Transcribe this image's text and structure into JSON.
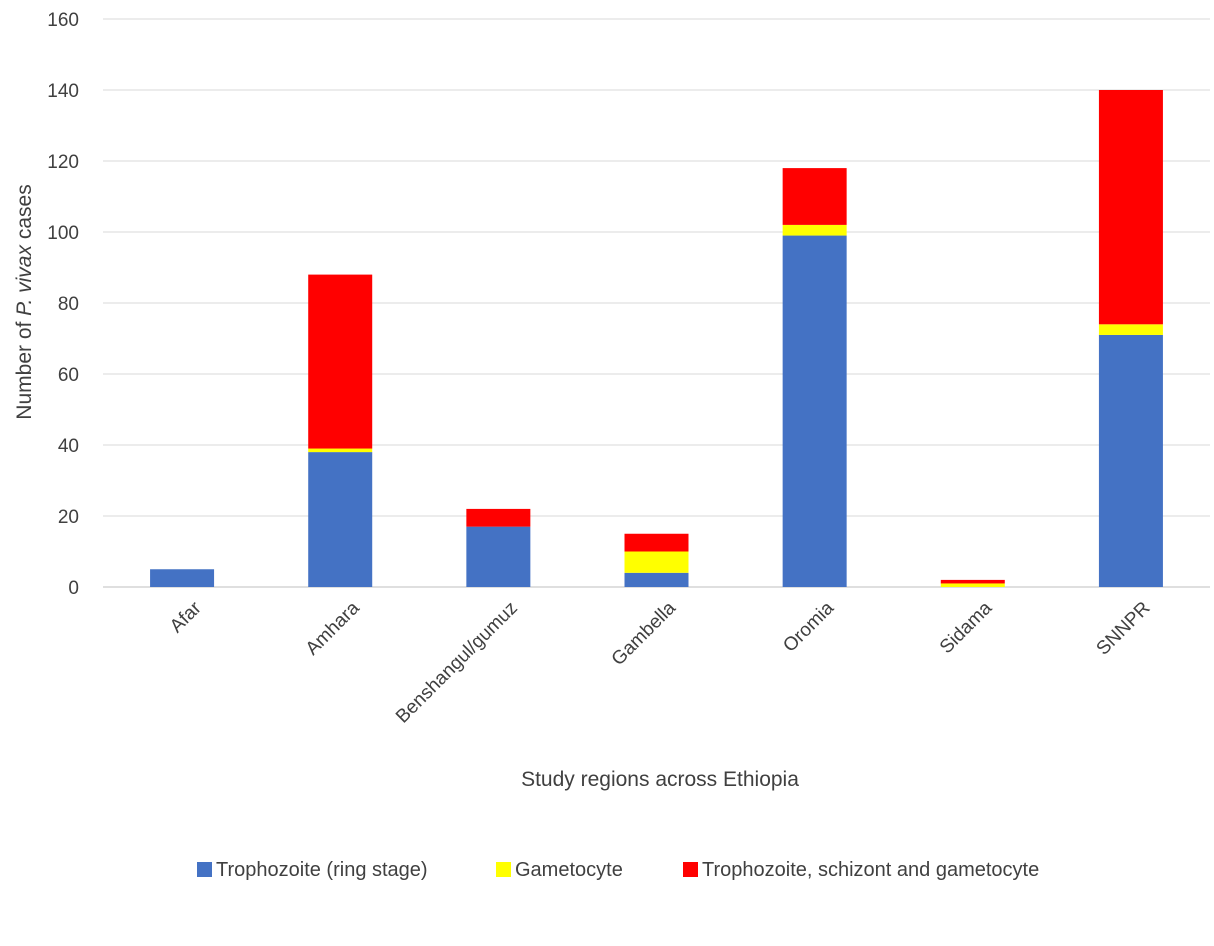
{
  "chart_data": {
    "type": "bar",
    "stacked": true,
    "title": "",
    "xlabel": "Study regions across Ethiopia",
    "ylabel": {
      "prefix": "Number of ",
      "italic": "P. vivax",
      "suffix": " cases"
    },
    "ylim": [
      0,
      160
    ],
    "yticks": [
      "0",
      "20",
      "40",
      "60",
      "80",
      "100",
      "120",
      "140",
      "160"
    ],
    "grid": true,
    "legend_position": "bottom",
    "categories": [
      "Afar",
      "Amhara",
      "Benshangul/gumuz",
      "Gambella",
      "Oromia",
      "Sidama",
      "SNNPR"
    ],
    "series": [
      {
        "name": "Trophozoite (ring stage)",
        "color": "#4472C4",
        "values": [
          5,
          38,
          17,
          4,
          99,
          0,
          71
        ]
      },
      {
        "name": "Gametocyte",
        "color": "#FFFF00",
        "values": [
          0,
          1,
          0,
          6,
          3,
          1,
          3
        ]
      },
      {
        "name": "Trophozoite, schizont and gametocyte",
        "color": "#FF0000",
        "values": [
          0,
          49,
          5,
          5,
          16,
          1,
          66
        ]
      }
    ]
  }
}
